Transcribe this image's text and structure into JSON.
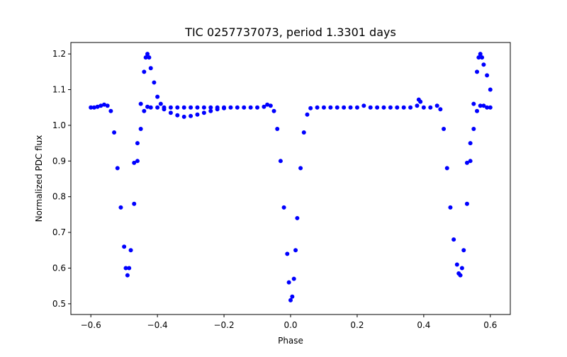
{
  "chart_data": {
    "type": "scatter",
    "title": "TIC 0257737073, period 1.3301 days",
    "xlabel": "Phase",
    "ylabel": "Normalized PDC flux",
    "xlim": [
      -0.66,
      0.66
    ],
    "ylim": [
      0.47,
      1.232
    ],
    "xticks": [
      -0.6,
      -0.4,
      -0.2,
      0.0,
      0.2,
      0.4,
      0.6
    ],
    "xtick_labels": [
      "−0.6",
      "−0.4",
      "−0.2",
      "0.0",
      "0.2",
      "0.4",
      "0.6"
    ],
    "yticks": [
      0.5,
      0.6,
      0.7,
      0.8,
      0.9,
      1.0,
      1.1,
      1.2
    ],
    "ytick_labels": [
      "0.5",
      "0.6",
      "0.7",
      "0.8",
      "0.9",
      "1.0",
      "1.1",
      "1.2"
    ],
    "grid": false,
    "marker_color": "#0000ff",
    "series": [
      {
        "points": [
          [
            -0.6,
            1.05
          ],
          [
            -0.59,
            1.05
          ],
          [
            -0.58,
            1.052
          ],
          [
            -0.57,
            1.055
          ],
          [
            -0.56,
            1.058
          ],
          [
            -0.55,
            1.055
          ],
          [
            -0.54,
            1.04
          ],
          [
            -0.53,
            0.98
          ],
          [
            -0.52,
            0.88
          ],
          [
            -0.51,
            0.77
          ],
          [
            -0.5,
            0.66
          ],
          [
            -0.495,
            0.6
          ],
          [
            -0.49,
            0.58
          ],
          [
            -0.485,
            0.6
          ],
          [
            -0.48,
            0.65
          ],
          [
            -0.47,
            0.78
          ],
          [
            -0.46,
            0.9
          ],
          [
            -0.45,
            0.99
          ],
          [
            -0.44,
            1.04
          ],
          [
            -0.43,
            1.052
          ],
          [
            -0.42,
            1.05
          ],
          [
            -0.4,
            1.05
          ],
          [
            -0.38,
            1.05
          ],
          [
            -0.36,
            1.05
          ],
          [
            -0.34,
            1.05
          ],
          [
            -0.32,
            1.05
          ],
          [
            -0.3,
            1.05
          ],
          [
            -0.28,
            1.05
          ],
          [
            -0.26,
            1.05
          ],
          [
            -0.24,
            1.05
          ],
          [
            -0.22,
            1.05
          ],
          [
            -0.2,
            1.05
          ],
          [
            -0.18,
            1.05
          ],
          [
            -0.16,
            1.05
          ],
          [
            -0.14,
            1.05
          ],
          [
            -0.12,
            1.05
          ],
          [
            -0.1,
            1.05
          ],
          [
            -0.08,
            1.052
          ],
          [
            -0.07,
            1.058
          ],
          [
            -0.06,
            1.055
          ],
          [
            -0.05,
            1.04
          ],
          [
            -0.04,
            0.99
          ],
          [
            -0.03,
            0.9
          ],
          [
            -0.02,
            0.77
          ],
          [
            -0.01,
            0.64
          ],
          [
            -0.005,
            0.56
          ],
          [
            0.0,
            0.51
          ],
          [
            0.005,
            0.52
          ],
          [
            0.01,
            0.57
          ],
          [
            0.015,
            0.65
          ],
          [
            0.02,
            0.74
          ],
          [
            0.03,
            0.88
          ],
          [
            0.04,
            0.98
          ],
          [
            0.05,
            1.03
          ],
          [
            0.06,
            1.048
          ],
          [
            0.08,
            1.05
          ],
          [
            0.1,
            1.05
          ],
          [
            0.12,
            1.05
          ],
          [
            0.14,
            1.05
          ],
          [
            0.16,
            1.05
          ],
          [
            0.18,
            1.05
          ],
          [
            0.2,
            1.05
          ],
          [
            0.22,
            1.055
          ],
          [
            0.24,
            1.05
          ],
          [
            0.26,
            1.05
          ],
          [
            0.28,
            1.05
          ],
          [
            0.3,
            1.05
          ],
          [
            0.32,
            1.05
          ],
          [
            0.34,
            1.05
          ],
          [
            0.36,
            1.05
          ],
          [
            0.38,
            1.055
          ],
          [
            0.385,
            1.072
          ],
          [
            0.39,
            1.066
          ],
          [
            0.4,
            1.05
          ],
          [
            0.42,
            1.05
          ],
          [
            0.44,
            1.055
          ],
          [
            0.45,
            1.045
          ],
          [
            0.46,
            0.99
          ],
          [
            0.47,
            0.88
          ],
          [
            0.48,
            0.77
          ],
          [
            0.49,
            0.68
          ],
          [
            0.5,
            0.61
          ],
          [
            0.505,
            0.585
          ],
          [
            0.51,
            0.58
          ],
          [
            0.515,
            0.6
          ],
          [
            0.52,
            0.65
          ],
          [
            0.53,
            0.78
          ],
          [
            0.54,
            0.9
          ],
          [
            0.55,
            0.99
          ],
          [
            0.56,
            1.04
          ],
          [
            0.57,
            1.055
          ],
          [
            0.58,
            1.055
          ],
          [
            0.59,
            1.05
          ],
          [
            0.6,
            1.05
          ]
        ]
      },
      {
        "points": [
          [
            -0.47,
            0.895
          ],
          [
            -0.46,
            0.95
          ],
          [
            -0.45,
            1.06
          ],
          [
            -0.44,
            1.15
          ],
          [
            -0.435,
            1.19
          ],
          [
            -0.43,
            1.2
          ],
          [
            -0.425,
            1.19
          ],
          [
            -0.42,
            1.16
          ],
          [
            -0.41,
            1.12
          ],
          [
            -0.4,
            1.08
          ],
          [
            -0.39,
            1.06
          ],
          [
            -0.38,
            1.045
          ],
          [
            -0.36,
            1.035
          ],
          [
            -0.34,
            1.028
          ],
          [
            -0.32,
            1.024
          ],
          [
            -0.3,
            1.026
          ],
          [
            -0.28,
            1.03
          ],
          [
            -0.26,
            1.035
          ],
          [
            -0.24,
            1.04
          ],
          [
            -0.22,
            1.045
          ],
          [
            -0.2,
            1.048
          ],
          [
            0.53,
            0.895
          ],
          [
            0.54,
            0.95
          ],
          [
            0.55,
            1.06
          ],
          [
            0.56,
            1.15
          ],
          [
            0.565,
            1.19
          ],
          [
            0.57,
            1.2
          ],
          [
            0.575,
            1.19
          ],
          [
            0.58,
            1.17
          ],
          [
            0.59,
            1.14
          ],
          [
            0.6,
            1.1
          ]
        ]
      }
    ]
  }
}
